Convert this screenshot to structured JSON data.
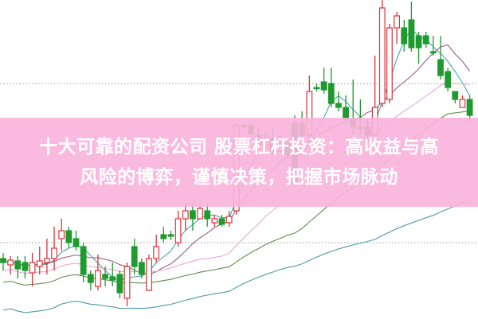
{
  "title": {
    "line1": "十大可靠的配资公司 股票杠杆投资：高收益与高",
    "line2": "风险的博弈，谨慎决策，把握市场脉动"
  },
  "colors": {
    "up": "#d8343a",
    "down": "#1f9a2e",
    "banner": "#f9b2dc",
    "ma_short": "#3fa7a8",
    "ma_mid": "#9a5a86",
    "ma_long": "#e9a6d8",
    "ma_longer": "#5f8d4a",
    "ma_longest": "#4a98aa",
    "grid": "#999999"
  },
  "chart": {
    "type": "candlestick",
    "grid": "dotted horizontal",
    "candles_ohlc_note": "open, close, high, low in relative price units",
    "candles": [
      [
        75,
        70,
        82,
        60
      ],
      [
        67,
        73,
        78,
        55
      ],
      [
        72,
        62,
        78,
        50
      ],
      [
        70,
        60,
        78,
        50
      ],
      [
        57,
        70,
        82,
        40
      ],
      [
        65,
        72,
        90,
        55
      ],
      [
        70,
        75,
        100,
        55
      ],
      [
        75,
        88,
        115,
        60
      ],
      [
        100,
        110,
        125,
        85
      ],
      [
        110,
        95,
        115,
        88
      ],
      [
        100,
        90,
        110,
        85
      ],
      [
        90,
        55,
        95,
        45
      ],
      [
        55,
        45,
        60,
        35
      ],
      [
        40,
        60,
        80,
        35
      ],
      [
        55,
        50,
        65,
        40
      ],
      [
        52,
        48,
        70,
        40
      ],
      [
        55,
        32,
        60,
        25
      ],
      [
        25,
        65,
        70,
        15
      ],
      [
        90,
        65,
        100,
        55
      ],
      [
        70,
        55,
        75,
        50
      ],
      [
        35,
        75,
        80,
        35
      ],
      [
        75,
        90,
        105,
        70
      ],
      [
        105,
        100,
        115,
        95
      ],
      [
        105,
        103,
        110,
        98
      ],
      [
        95,
        125,
        135,
        90
      ],
      [
        125,
        135,
        145,
        110
      ],
      [
        135,
        125,
        145,
        110
      ],
      [
        125,
        138,
        145,
        125
      ],
      [
        135,
        125,
        145,
        115
      ],
      [
        120,
        125,
        130,
        115
      ],
      [
        125,
        118,
        130,
        115
      ],
      [
        120,
        128,
        135,
        115
      ],
      [
        135,
        242,
        245,
        130
      ],
      [
        242,
        242,
        244,
        240
      ],
      [
        242,
        232,
        245,
        230
      ],
      [
        230,
        218,
        240,
        215
      ],
      [
        215,
        225,
        235,
        212
      ],
      [
        225,
        210,
        240,
        205
      ],
      [
        210,
        215,
        230,
        210
      ],
      [
        220,
        205,
        225,
        200
      ],
      [
        245,
        170,
        255,
        165
      ],
      [
        245,
        230,
        260,
        225
      ],
      [
        230,
        285,
        305,
        225
      ],
      [
        290,
        290,
        295,
        285
      ],
      [
        297,
        287,
        315,
        282
      ],
      [
        295,
        270,
        315,
        265
      ],
      [
        270,
        265,
        285,
        260
      ],
      [
        265,
        250,
        280,
        245
      ],
      [
        250,
        240,
        300,
        230
      ],
      [
        240,
        240,
        275,
        230
      ],
      [
        240,
        230,
        250,
        222
      ],
      [
        230,
        265,
        330,
        225
      ],
      [
        270,
        390,
        400,
        265
      ],
      [
        275,
        365,
        370,
        270
      ],
      [
        365,
        380,
        385,
        345
      ],
      [
        365,
        345,
        375,
        335
      ],
      [
        375,
        340,
        398,
        335
      ],
      [
        355,
        340,
        360,
        320
      ],
      [
        355,
        345,
        360,
        340
      ],
      [
        335,
        335,
        355,
        330
      ],
      [
        325,
        305,
        355,
        300
      ],
      [
        310,
        290,
        315,
        285
      ],
      [
        285,
        275,
        285,
        270
      ],
      [
        265,
        275,
        280,
        265
      ],
      [
        275,
        255,
        280,
        245
      ]
    ],
    "moving_averages": [
      5,
      10,
      20,
      30,
      60
    ]
  }
}
